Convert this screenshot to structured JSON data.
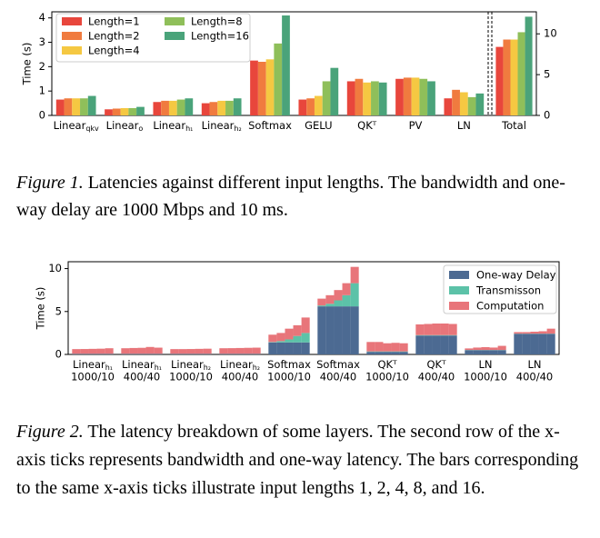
{
  "chart_data": [
    {
      "type": "bar",
      "ylabel": "Time (s)",
      "categories": [
        {
          "text": "Linear",
          "sub": "qkv"
        },
        {
          "text": "Linear",
          "sub": "o"
        },
        {
          "text": "Linear",
          "sub": "h₁"
        },
        {
          "text": "Linear",
          "sub": "h₂"
        },
        {
          "text": "Softmax"
        },
        {
          "text": "GELU"
        },
        {
          "text": "QKᵀ"
        },
        {
          "text": "PV"
        },
        {
          "text": "LN"
        }
      ],
      "series": [
        {
          "name": "Length=1",
          "color": "#e8463c",
          "values": [
            0.65,
            0.25,
            0.55,
            0.5,
            2.25,
            0.65,
            1.4,
            1.5,
            0.7
          ]
        },
        {
          "name": "Length=2",
          "color": "#f07b3f",
          "values": [
            0.7,
            0.28,
            0.6,
            0.55,
            2.2,
            0.7,
            1.5,
            1.55,
            1.05
          ]
        },
        {
          "name": "Length=4",
          "color": "#f5c842",
          "values": [
            0.7,
            0.3,
            0.6,
            0.6,
            2.3,
            0.8,
            1.35,
            1.55,
            0.95
          ]
        },
        {
          "name": "Length=8",
          "color": "#8fbf5a",
          "values": [
            0.7,
            0.3,
            0.65,
            0.6,
            2.95,
            1.4,
            1.4,
            1.5,
            0.75
          ]
        },
        {
          "name": "Length=16",
          "color": "#4aa37a",
          "values": [
            0.8,
            0.35,
            0.7,
            0.7,
            4.1,
            1.95,
            1.35,
            1.4,
            0.9
          ]
        }
      ],
      "ylim": [
        0,
        4.25
      ],
      "yticks": [
        0,
        1,
        2,
        3,
        4
      ],
      "legend": "upper left"
    },
    {
      "type": "bar",
      "categories": [
        {
          "text": "Total"
        }
      ],
      "series": [
        {
          "color": "#e8463c",
          "values": [
            8.4
          ]
        },
        {
          "color": "#f07b3f",
          "values": [
            9.3
          ]
        },
        {
          "color": "#f5c842",
          "values": [
            9.3
          ]
        },
        {
          "color": "#8fbf5a",
          "values": [
            10.2
          ]
        },
        {
          "color": "#4aa37a",
          "values": [
            12.1
          ]
        }
      ],
      "ylim": [
        0,
        12.7
      ],
      "yticks": [
        0,
        5,
        10
      ],
      "yaxis_side": "right"
    },
    {
      "type": "stacked_bar",
      "ylabel": "Time (s)",
      "categories": [
        {
          "text": "Linear",
          "sub": "h₁",
          "setting": "1000/10"
        },
        {
          "text": "Linear",
          "sub": "h₁",
          "setting": "400/40"
        },
        {
          "text": "Linear",
          "sub": "h₂",
          "setting": "1000/10"
        },
        {
          "text": "Linear",
          "sub": "h₂",
          "setting": "400/40"
        },
        {
          "text": "Softmax",
          "setting": "1000/10"
        },
        {
          "text": "Softmax",
          "setting": "400/40"
        },
        {
          "text": "QKᵀ",
          "setting": "1000/10"
        },
        {
          "text": "QKᵀ",
          "setting": "400/40"
        },
        {
          "text": "LN",
          "setting": "1000/10"
        },
        {
          "text": "LN",
          "setting": "400/40"
        }
      ],
      "series": [
        {
          "name": "One-way Delay",
          "color": "#4c6a92",
          "values": [
            [
              0.05,
              0.05,
              0.05,
              0.05,
              0.05
            ],
            [
              0.05,
              0.05,
              0.05,
              0.05,
              0.05
            ],
            [
              0.05,
              0.05,
              0.05,
              0.05,
              0.05
            ],
            [
              0.05,
              0.05,
              0.05,
              0.05,
              0.05
            ],
            [
              1.4,
              1.4,
              1.4,
              1.4,
              1.4
            ],
            [
              5.6,
              5.6,
              5.6,
              5.6,
              5.6
            ],
            [
              0.3,
              0.3,
              0.3,
              0.3,
              0.3
            ],
            [
              2.2,
              2.2,
              2.2,
              2.2,
              2.2
            ],
            [
              0.5,
              0.5,
              0.5,
              0.5,
              0.5
            ],
            [
              2.4,
              2.4,
              2.4,
              2.4,
              2.4
            ]
          ]
        },
        {
          "name": "Transmisson",
          "color": "#5cc2a8",
          "values": [
            [
              0.02,
              0.02,
              0.02,
              0.02,
              0.02
            ],
            [
              0.02,
              0.02,
              0.02,
              0.02,
              0.02
            ],
            [
              0.02,
              0.02,
              0.02,
              0.02,
              0.02
            ],
            [
              0.02,
              0.02,
              0.02,
              0.02,
              0.02
            ],
            [
              0.05,
              0.15,
              0.35,
              0.75,
              1.1
            ],
            [
              0.1,
              0.3,
              0.7,
              1.3,
              2.7
            ],
            [
              0.05,
              0.05,
              0.05,
              0.05,
              0.05
            ],
            [
              0.05,
              0.05,
              0.05,
              0.05,
              0.05
            ],
            [
              0.02,
              0.02,
              0.02,
              0.02,
              0.02
            ],
            [
              0.02,
              0.02,
              0.02,
              0.02,
              0.02
            ]
          ]
        },
        {
          "name": "Computation",
          "color": "#e8757a",
          "values": [
            [
              0.55,
              0.56,
              0.58,
              0.6,
              0.65
            ],
            [
              0.65,
              0.68,
              0.7,
              0.8,
              0.72
            ],
            [
              0.55,
              0.55,
              0.56,
              0.58,
              0.6
            ],
            [
              0.65,
              0.66,
              0.68,
              0.7,
              0.72
            ],
            [
              0.85,
              0.95,
              1.25,
              1.25,
              1.8
            ],
            [
              0.8,
              1.0,
              1.2,
              1.4,
              1.9
            ],
            [
              1.1,
              1.1,
              0.95,
              1.0,
              0.95
            ],
            [
              1.25,
              1.3,
              1.35,
              1.35,
              1.3
            ],
            [
              0.18,
              0.28,
              0.33,
              0.28,
              0.48
            ],
            [
              0.18,
              0.18,
              0.23,
              0.28,
              0.58
            ]
          ]
        }
      ],
      "ylim": [
        0,
        10.8
      ],
      "yticks": [
        0,
        5,
        10
      ],
      "legend": "upper right"
    }
  ],
  "captions": [
    {
      "label": "Figure 1.",
      "text": "Latencies against different input lengths. The bandwidth and one-way delay are 1000 Mbps and 10 ms."
    },
    {
      "label": "Figure 2.",
      "text": "The latency breakdown of some layers. The second row of the x-axis ticks represents bandwidth and one-way latency. The bars corresponding to the same x-axis ticks illustrate input lengths 1, 2, 4, 8, and 16."
    }
  ]
}
